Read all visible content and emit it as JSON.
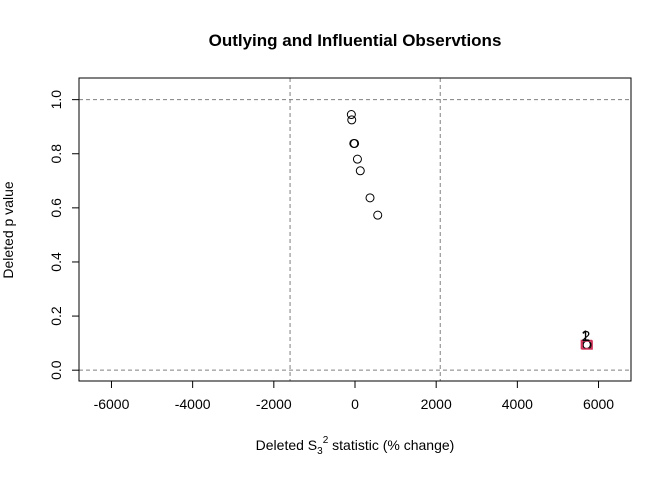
{
  "chart_data": {
    "type": "scatter",
    "title": "Outlying and Influential Observtions",
    "xlabel": {
      "prefix": "Deleted S",
      "subscript": "3",
      "superscript": "2",
      "suffix": " statistic (% change)"
    },
    "ylabel": "Deleted p value",
    "xlim": [
      -6800,
      6800
    ],
    "ylim": [
      -0.04,
      1.08
    ],
    "xticks": [
      -6000,
      -4000,
      -2000,
      0,
      2000,
      4000,
      6000
    ],
    "xtick_labels": [
      "-6000",
      "-4000",
      "-2000",
      "0",
      "2000",
      "4000",
      "6000"
    ],
    "yticks": [
      0.0,
      0.2,
      0.4,
      0.6,
      0.8,
      1.0
    ],
    "ytick_labels": [
      "0.0",
      "0.2",
      "0.4",
      "0.6",
      "0.8",
      "1.0"
    ],
    "reference_lines": {
      "vertical": [
        -1600,
        2100
      ],
      "horizontal": [
        0.0,
        1.0
      ],
      "style": "dashed",
      "color": "#808080"
    },
    "points": [
      {
        "x": -90,
        "y": 0.945,
        "highlight": false
      },
      {
        "x": -80,
        "y": 0.925,
        "highlight": false
      },
      {
        "x": -30,
        "y": 0.838,
        "highlight": false
      },
      {
        "x": -10,
        "y": 0.838,
        "highlight": false
      },
      {
        "x": 60,
        "y": 0.78,
        "highlight": false
      },
      {
        "x": 130,
        "y": 0.737,
        "highlight": false
      },
      {
        "x": 370,
        "y": 0.637,
        "highlight": false
      },
      {
        "x": 560,
        "y": 0.573,
        "highlight": false
      },
      {
        "x": 5700,
        "y": 0.095,
        "highlight": true,
        "label": "1"
      },
      {
        "x": 5720,
        "y": 0.093,
        "highlight": true,
        "label": "2"
      }
    ],
    "highlight_color": "#d1345b",
    "grid": false,
    "legend": "none"
  }
}
